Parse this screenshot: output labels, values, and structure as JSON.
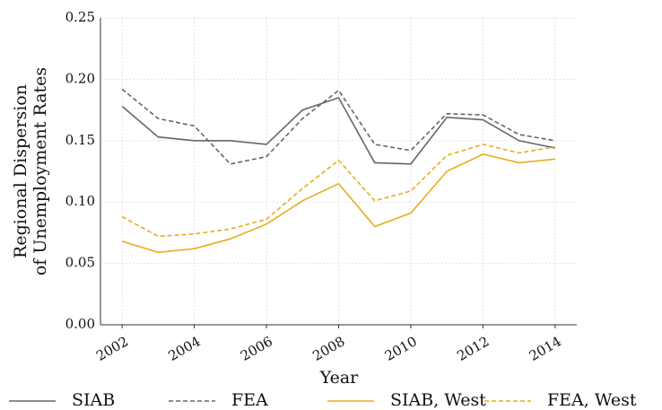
{
  "chart_data": {
    "type": "line",
    "xlabel": "Year",
    "ylabel": [
      "Regional Dispersion",
      "of Unemployment Rates"
    ],
    "x": [
      2002,
      2003,
      2004,
      2005,
      2006,
      2007,
      2008,
      2009,
      2010,
      2011,
      2012,
      2013,
      2014
    ],
    "series": [
      {
        "name": "SIAB",
        "color": "#666666",
        "dashed": false,
        "values": [
          0.178,
          0.153,
          0.15,
          0.15,
          0.147,
          0.175,
          0.185,
          0.132,
          0.131,
          0.169,
          0.167,
          0.15,
          0.144
        ]
      },
      {
        "name": "FEA",
        "color": "#666666",
        "dashed": true,
        "values": [
          0.192,
          0.168,
          0.162,
          0.131,
          0.137,
          0.168,
          0.191,
          0.147,
          0.142,
          0.172,
          0.171,
          0.155,
          0.15
        ]
      },
      {
        "name": "SIAB, West",
        "color": "#e6ae1e",
        "dashed": false,
        "values": [
          0.068,
          0.059,
          0.062,
          0.07,
          0.082,
          0.101,
          0.115,
          0.08,
          0.091,
          0.125,
          0.139,
          0.132,
          0.135
        ]
      },
      {
        "name": "FEA, West",
        "color": "#e6ae1e",
        "dashed": true,
        "values": [
          0.088,
          0.072,
          0.074,
          0.078,
          0.086,
          0.111,
          0.134,
          0.101,
          0.109,
          0.138,
          0.147,
          0.14,
          0.145
        ]
      }
    ],
    "xlim": [
      2001.4,
      2014.6
    ],
    "xticks": [
      2002,
      2004,
      2006,
      2008,
      2010,
      2012,
      2014
    ],
    "ylim": [
      0,
      0.25
    ],
    "yticks": [
      {
        "value": 0,
        "label": "0.00"
      },
      {
        "value": 0.05,
        "label": "0.05"
      },
      {
        "value": 0.1,
        "label": "0.10"
      },
      {
        "value": 0.15,
        "label": "0.15"
      },
      {
        "value": 0.2,
        "label": "0.20"
      },
      {
        "value": 0.25,
        "label": "0.25"
      }
    ],
    "grid": true,
    "legend": "bottom"
  }
}
